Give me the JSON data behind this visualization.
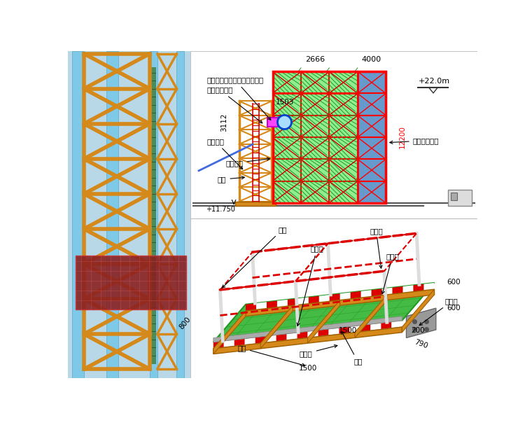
{
  "bg_color": "#ffffff",
  "left_panel": {
    "bg": "#c8e8f0",
    "blue_col_color": "#7ec8e8",
    "orange_truss_color": "#d4891a",
    "green_ladder_color": "#5a9e6a",
    "red_platform_color": "#8b2020"
  },
  "upper_right": {
    "red_color": "#ff0000",
    "green_fill": "#90ee90",
    "blue_fill": "#6699cc",
    "orange_color": "#d4891a",
    "blue_line": "#4169e1",
    "magenta_color": "#ff00ff",
    "label1": "垂直通道与水平通道连接通道",
    "label2": "环向水平通道",
    "label3": "垂直爬梯",
    "label4": "附胎架件",
    "label5": "胎架",
    "label6": "垂直通道楼梯",
    "label7": "+22.0m",
    "label8": "+11.750",
    "dim1": "3112",
    "dim2": "1503",
    "dim3": "12200",
    "dim4": "2666",
    "dim5": "4000"
  },
  "lower_right": {
    "label1": "立杆",
    "label2": "上栏杆",
    "label3": "钢网片",
    "label4": "下栏杆",
    "label5": "纵梁",
    "label6": "踢脚板",
    "label7": "檩梁",
    "label8": "过渡板",
    "dim1": "800",
    "dim2": "1500",
    "dim3": "1500",
    "dim4": "200",
    "dim5": "790",
    "dim6": "600",
    "dim7": "600"
  }
}
